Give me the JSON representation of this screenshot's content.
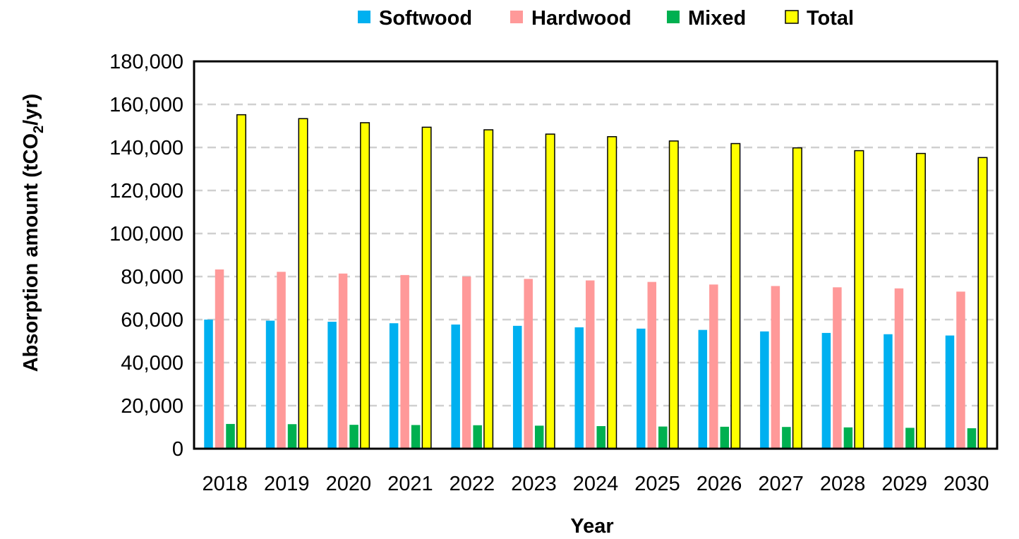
{
  "chart_data": {
    "type": "bar",
    "categories": [
      "2018",
      "2019",
      "2020",
      "2021",
      "2022",
      "2023",
      "2024",
      "2025",
      "2026",
      "2027",
      "2028",
      "2029",
      "2030"
    ],
    "series": [
      {
        "name": "Softwood",
        "color": "#00B0F0",
        "values": [
          60000,
          59500,
          59000,
          58300,
          57700,
          57100,
          56400,
          55800,
          55200,
          54500,
          53800,
          53200,
          52600
        ]
      },
      {
        "name": "Hardwood",
        "color": "#FF9999",
        "values": [
          83300,
          82200,
          81400,
          80700,
          80000,
          78900,
          78200,
          77500,
          76300,
          75600,
          75000,
          74500,
          73000
        ]
      },
      {
        "name": "Mixed",
        "color": "#00B050",
        "values": [
          11500,
          11400,
          11100,
          11000,
          10900,
          10700,
          10500,
          10300,
          10200,
          10100,
          9900,
          9700,
          9500
        ]
      },
      {
        "name": "Total",
        "color": "#FFFF00",
        "values": [
          155200,
          153400,
          151500,
          149400,
          148200,
          146200,
          145000,
          143000,
          141800,
          139800,
          138500,
          137200,
          135300
        ]
      }
    ],
    "xlabel": "Year",
    "ylabel_main": "Absorption amount (tCO",
    "ylabel_sub": "2",
    "ylabel_end": "/yr)",
    "ylim": [
      0,
      180000
    ],
    "yticks": [
      "0",
      "20,000",
      "40,000",
      "60,000",
      "80,000",
      "100,000",
      "120,000",
      "140,000",
      "160,000",
      "180,000"
    ],
    "ytick_values": [
      0,
      20000,
      40000,
      60000,
      80000,
      100000,
      120000,
      140000,
      160000,
      180000
    ],
    "grid": true,
    "legend_position": "top"
  }
}
